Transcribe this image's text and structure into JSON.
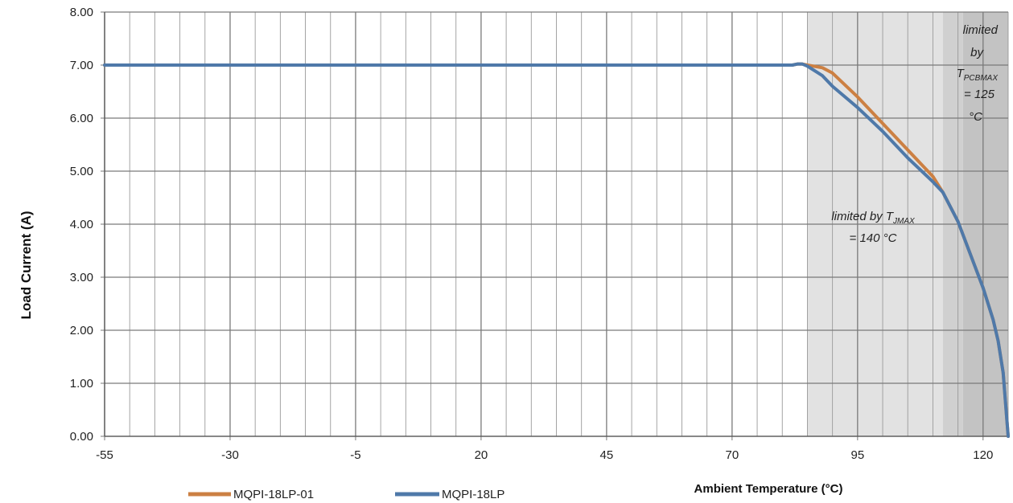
{
  "chart_data": {
    "type": "line",
    "xlabel": "Ambient Temperature (°C)",
    "ylabel": "Load Current (A)",
    "xlim": [
      -55,
      125
    ],
    "ylim": [
      0,
      8
    ],
    "x_ticks": [
      -55,
      -30,
      -5,
      20,
      45,
      70,
      95,
      120
    ],
    "x_tick_labels": [
      "-55",
      "-30",
      "-5",
      "20",
      "45",
      "70",
      "95",
      "120"
    ],
    "x_minor_step": 5,
    "y_ticks": [
      0,
      1,
      2,
      3,
      4,
      5,
      6,
      7,
      8
    ],
    "y_tick_labels": [
      "0.00",
      "1.00",
      "2.00",
      "3.00",
      "4.00",
      "5.00",
      "6.00",
      "7.00",
      "8.00"
    ],
    "grid": true,
    "legend_position": "bottom-left",
    "regions": [
      {
        "x_from": 85,
        "x_to": 112,
        "color": "#e2e2e2"
      },
      {
        "x_from": 112,
        "x_to": 116,
        "color": "#d0d0d0"
      },
      {
        "x_from": 116,
        "x_to": 125,
        "color": "#c3c3c3"
      }
    ],
    "annotations": {
      "tj": {
        "line1_a": "limited by T",
        "line1_sub": "JMAX",
        "line2": "= 140 °C"
      },
      "tpcb": {
        "line1": "limited",
        "line2": "by",
        "line3_a": "T",
        "line3_sub": "PCBMAX",
        "line4": "= 125",
        "line5": "°C"
      }
    },
    "series": [
      {
        "name": "MQPI-18LP-01",
        "color": "#cc8043",
        "points": [
          [
            -55,
            7.0
          ],
          [
            82,
            7.0
          ],
          [
            83,
            7.02
          ],
          [
            84,
            7.02
          ],
          [
            85,
            7.0
          ],
          [
            88,
            6.95
          ],
          [
            90,
            6.85
          ],
          [
            95,
            6.4
          ],
          [
            100,
            5.9
          ],
          [
            105,
            5.4
          ],
          [
            110,
            4.9
          ],
          [
            112,
            4.6
          ],
          [
            115,
            4.05
          ],
          [
            118,
            3.3
          ],
          [
            120,
            2.8
          ],
          [
            122,
            2.2
          ],
          [
            123,
            1.8
          ],
          [
            124,
            1.2
          ],
          [
            125,
            0.0
          ]
        ]
      },
      {
        "name": "MQPI-18LP",
        "color": "#4f79a9",
        "points": [
          [
            -55,
            7.0
          ],
          [
            82,
            7.0
          ],
          [
            83,
            7.02
          ],
          [
            84,
            7.02
          ],
          [
            85,
            6.98
          ],
          [
            88,
            6.8
          ],
          [
            90,
            6.6
          ],
          [
            95,
            6.2
          ],
          [
            100,
            5.75
          ],
          [
            105,
            5.25
          ],
          [
            110,
            4.8
          ],
          [
            112,
            4.6
          ],
          [
            115,
            4.05
          ],
          [
            118,
            3.3
          ],
          [
            120,
            2.8
          ],
          [
            122,
            2.2
          ],
          [
            123,
            1.8
          ],
          [
            124,
            1.2
          ],
          [
            125,
            0.0
          ]
        ]
      }
    ]
  }
}
